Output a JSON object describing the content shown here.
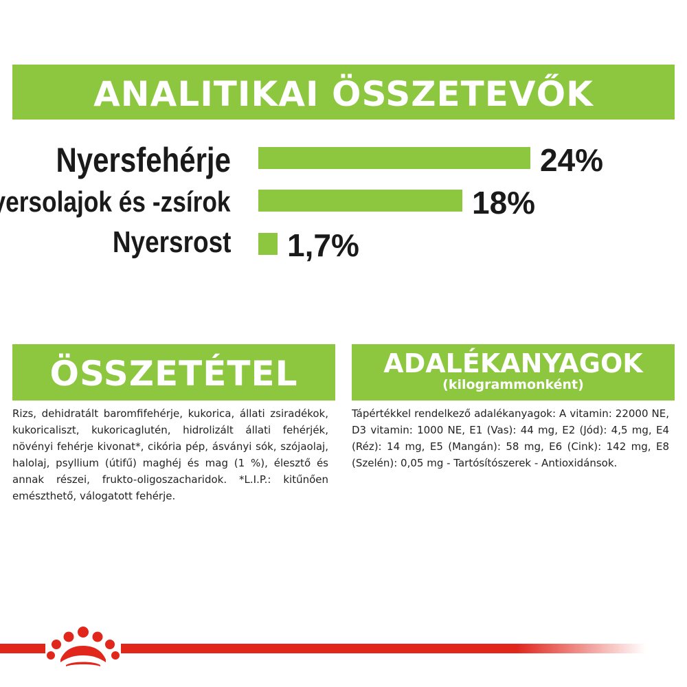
{
  "analysis": {
    "title": "ANALITIKAI ÖSSZETEVŐK",
    "items": [
      {
        "label": "Nyersfehérje",
        "value": "24%",
        "percent": 24
      },
      {
        "label": "Nyersolajok és -zsírok",
        "value": "18%",
        "percent": 18
      },
      {
        "label": "Nyersrost",
        "value": "1,7%",
        "percent": 1.7
      }
    ]
  },
  "composition": {
    "title": "ÖSSZETÉTEL",
    "text": "Rizs, dehidratált baromfifehérje, kukorica, állati zsiradékok, kukoricaliszt, kukoricaglutén, hidrolizált állati fehérjék, növényi fehérje kivonat*, cikória pép, ásványi sók, szójaolaj, halolaj, psyllium (útifű) maghéj és mag (1 %), élesztő és annak részei, frukto-oligoszacharidok. *L.I.P.: kitűnően emészthető, válogatott fehérje."
  },
  "additives": {
    "title": "ADALÉKANYAGOK",
    "subtitle": "(kilogrammonként)",
    "text": "Tápértékkel rendelkező adalékanyagok: A vitamin: 22000 NE, D3 vitamin: 1000 NE, E1 (Vas): 44 mg, E2 (Jód): 4,5 mg, E4 (Réz): 14 mg, E5 (Mangán): 58 mg, E6 (Cink): 142 mg, E8 (Szelén): 0,05 mg - Tartósítószerek - Antioxidánsok."
  },
  "colors": {
    "accent_green": "#8dc63f",
    "brand_red": "#e1261c"
  },
  "footer": {
    "logo_icon": "crown-icon"
  }
}
